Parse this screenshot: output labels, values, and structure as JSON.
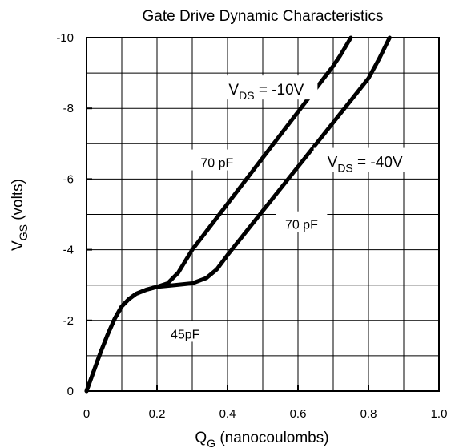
{
  "chart_data": {
    "type": "line",
    "title": "Gate Drive Dynamic Characteristics",
    "x_axis": {
      "label_main": "Q",
      "label_sub": "G",
      "label_rest": " (nanocoulombs)",
      "range": [
        0,
        1.0
      ],
      "ticks": [
        0,
        0.2,
        0.4,
        0.6,
        0.8,
        1.0
      ],
      "tick_labels": [
        "0",
        "0.2",
        "0.4",
        "0.6",
        "0.8",
        "1.0"
      ],
      "grid_step": 0.1
    },
    "y_axis": {
      "label_main": "V",
      "label_sub": "GS",
      "label_rest": " (volts)",
      "range": [
        0,
        -10
      ],
      "ticks": [
        0,
        -2,
        -4,
        -6,
        -8,
        -10
      ],
      "tick_labels": [
        "0",
        "-2",
        "-4",
        "-6",
        "-8",
        "-10"
      ],
      "grid_step": -1
    },
    "grid": true,
    "series": [
      {
        "name": "V_DS = -10V",
        "points": [
          [
            0,
            0
          ],
          [
            0.02,
            -0.55
          ],
          [
            0.04,
            -1.1
          ],
          [
            0.06,
            -1.6
          ],
          [
            0.08,
            -2.05
          ],
          [
            0.1,
            -2.4
          ],
          [
            0.12,
            -2.6
          ],
          [
            0.14,
            -2.75
          ],
          [
            0.17,
            -2.87
          ],
          [
            0.2,
            -2.95
          ],
          [
            0.23,
            -3.05
          ],
          [
            0.26,
            -3.35
          ],
          [
            0.3,
            -4.0
          ],
          [
            0.4,
            -5.3
          ],
          [
            0.5,
            -6.6
          ],
          [
            0.6,
            -7.9
          ],
          [
            0.7,
            -9.2
          ],
          [
            0.72,
            -9.5
          ],
          [
            0.75,
            -10.0
          ]
        ]
      },
      {
        "name": "V_DS = -40V",
        "points": [
          [
            0,
            0
          ],
          [
            0.02,
            -0.55
          ],
          [
            0.04,
            -1.1
          ],
          [
            0.06,
            -1.6
          ],
          [
            0.08,
            -2.05
          ],
          [
            0.1,
            -2.4
          ],
          [
            0.12,
            -2.6
          ],
          [
            0.14,
            -2.75
          ],
          [
            0.17,
            -2.87
          ],
          [
            0.2,
            -2.95
          ],
          [
            0.25,
            -3.0
          ],
          [
            0.3,
            -3.05
          ],
          [
            0.34,
            -3.2
          ],
          [
            0.37,
            -3.45
          ],
          [
            0.4,
            -3.85
          ],
          [
            0.5,
            -5.1
          ],
          [
            0.6,
            -6.35
          ],
          [
            0.7,
            -7.6
          ],
          [
            0.8,
            -8.85
          ],
          [
            0.83,
            -9.4
          ],
          [
            0.86,
            -10.0
          ]
        ]
      }
    ],
    "annotations": [
      {
        "id": "vds-10",
        "main": "V",
        "sub": "DS",
        "rest": " = -10V",
        "x": 0.51,
        "y": -8.5
      },
      {
        "id": "vds-40",
        "main": "V",
        "sub": "DS",
        "rest": " = -40V",
        "x": 0.79,
        "y": -6.45
      },
      {
        "id": "cap-70-left",
        "text": "70 pF",
        "x": 0.37,
        "y": -6.45
      },
      {
        "id": "cap-70-right",
        "text": "70 pF",
        "x": 0.61,
        "y": -4.7
      },
      {
        "id": "cap-45",
        "text": "45pF",
        "x": 0.28,
        "y": -1.6
      }
    ],
    "colors": {
      "line": "#000000",
      "grid": "#000000",
      "background": "#ffffff",
      "label_background": "#ffffff"
    }
  }
}
